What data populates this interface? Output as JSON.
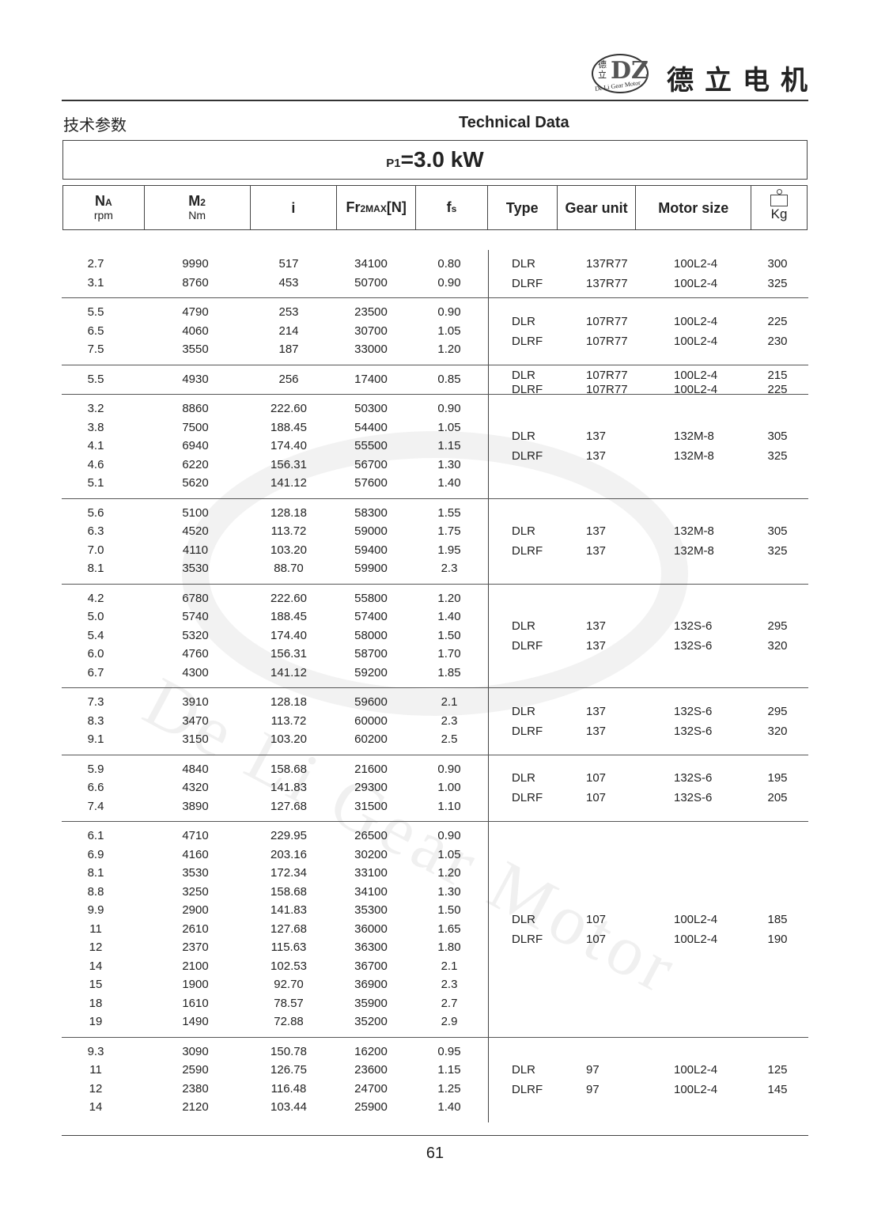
{
  "header": {
    "brand": "德立电机",
    "logo_text": "De Li Gear Motor",
    "logo_chars": "德立",
    "title_cn": "技术参数",
    "title_en": "Technical Data"
  },
  "power": {
    "label": "P",
    "sub": "1",
    "value": "=3.0 kW"
  },
  "columns": [
    {
      "main": "N",
      "sub": "A",
      "unit": "rpm"
    },
    {
      "main": "M",
      "sub": "2",
      "unit": "Nm"
    },
    {
      "main": "i"
    },
    {
      "main": "Fr",
      "sub": "2MAX",
      "tail": "[N]"
    },
    {
      "main": "f",
      "sub": "s"
    },
    {
      "main": "Type"
    },
    {
      "main": "Gear unit"
    },
    {
      "main": "Motor size"
    },
    {
      "main": "Kg",
      "icon": "weight-icon"
    }
  ],
  "groups": [
    {
      "rows": [
        [
          "2.7",
          "9990",
          "517",
          "34100",
          "0.80"
        ],
        [
          "3.1",
          "8760",
          "453",
          "50700",
          "0.90"
        ]
      ],
      "types": [
        [
          "DLR",
          "137R77",
          "100L2-4",
          "300"
        ],
        [
          "DLRF",
          "137R77",
          "100L2-4",
          "325"
        ]
      ]
    },
    {
      "rows": [
        [
          "5.5",
          "4790",
          "253",
          "23500",
          "0.90"
        ],
        [
          "6.5",
          "4060",
          "214",
          "30700",
          "1.05"
        ],
        [
          "7.5",
          "3550",
          "187",
          "33000",
          "1.20"
        ]
      ],
      "types": [
        [
          "DLR",
          "107R77",
          "100L2-4",
          "225"
        ],
        [
          "DLRF",
          "107R77",
          "100L2-4",
          "230"
        ]
      ]
    },
    {
      "rows": [
        [
          "5.5",
          "4930",
          "256",
          "17400",
          "0.85"
        ]
      ],
      "types": [
        [
          "DLR",
          "107R77",
          "100L2-4",
          "215"
        ],
        [
          "DLRF",
          "107R77",
          "100L2-4",
          "225"
        ]
      ]
    },
    {
      "rows": [
        [
          "3.2",
          "8860",
          "222.60",
          "50300",
          "0.90"
        ],
        [
          "3.8",
          "7500",
          "188.45",
          "54400",
          "1.05"
        ],
        [
          "4.1",
          "6940",
          "174.40",
          "55500",
          "1.15"
        ],
        [
          "4.6",
          "6220",
          "156.31",
          "56700",
          "1.30"
        ],
        [
          "5.1",
          "5620",
          "141.12",
          "57600",
          "1.40"
        ]
      ],
      "types": [
        [
          "DLR",
          "137",
          "132M-8",
          "305"
        ],
        [
          "DLRF",
          "137",
          "132M-8",
          "325"
        ]
      ]
    },
    {
      "rows": [
        [
          "5.6",
          "5100",
          "128.18",
          "58300",
          "1.55"
        ],
        [
          "6.3",
          "4520",
          "113.72",
          "59000",
          "1.75"
        ],
        [
          "7.0",
          "4110",
          "103.20",
          "59400",
          "1.95"
        ],
        [
          "8.1",
          "3530",
          "88.70",
          "59900",
          "2.3"
        ]
      ],
      "types": [
        [
          "DLR",
          "137",
          "132M-8",
          "305"
        ],
        [
          "DLRF",
          "137",
          "132M-8",
          "325"
        ]
      ]
    },
    {
      "rows": [
        [
          "4.2",
          "6780",
          "222.60",
          "55800",
          "1.20"
        ],
        [
          "5.0",
          "5740",
          "188.45",
          "57400",
          "1.40"
        ],
        [
          "5.4",
          "5320",
          "174.40",
          "58000",
          "1.50"
        ],
        [
          "6.0",
          "4760",
          "156.31",
          "58700",
          "1.70"
        ],
        [
          "6.7",
          "4300",
          "141.12",
          "59200",
          "1.85"
        ]
      ],
      "types": [
        [
          "DLR",
          "137",
          "132S-6",
          "295"
        ],
        [
          "DLRF",
          "137",
          "132S-6",
          "320"
        ]
      ]
    },
    {
      "rows": [
        [
          "7.3",
          "3910",
          "128.18",
          "59600",
          "2.1"
        ],
        [
          "8.3",
          "3470",
          "113.72",
          "60000",
          "2.3"
        ],
        [
          "9.1",
          "3150",
          "103.20",
          "60200",
          "2.5"
        ]
      ],
      "types": [
        [
          "DLR",
          "137",
          "132S-6",
          "295"
        ],
        [
          "DLRF",
          "137",
          "132S-6",
          "320"
        ]
      ]
    },
    {
      "rows": [
        [
          "5.9",
          "4840",
          "158.68",
          "21600",
          "0.90"
        ],
        [
          "6.6",
          "4320",
          "141.83",
          "29300",
          "1.00"
        ],
        [
          "7.4",
          "3890",
          "127.68",
          "31500",
          "1.10"
        ]
      ],
      "types": [
        [
          "DLR",
          "107",
          "132S-6",
          "195"
        ],
        [
          "DLRF",
          "107",
          "132S-6",
          "205"
        ]
      ]
    },
    {
      "rows": [
        [
          "6.1",
          "4710",
          "229.95",
          "26500",
          "0.90"
        ],
        [
          "6.9",
          "4160",
          "203.16",
          "30200",
          "1.05"
        ],
        [
          "8.1",
          "3530",
          "172.34",
          "33100",
          "1.20"
        ],
        [
          "8.8",
          "3250",
          "158.68",
          "34100",
          "1.30"
        ],
        [
          "9.9",
          "2900",
          "141.83",
          "35300",
          "1.50"
        ],
        [
          "11",
          "2610",
          "127.68",
          "36000",
          "1.65"
        ],
        [
          "12",
          "2370",
          "115.63",
          "36300",
          "1.80"
        ],
        [
          "14",
          "2100",
          "102.53",
          "36700",
          "2.1"
        ],
        [
          "15",
          "1900",
          "92.70",
          "36900",
          "2.3"
        ],
        [
          "18",
          "1610",
          "78.57",
          "35900",
          "2.7"
        ],
        [
          "19",
          "1490",
          "72.88",
          "35200",
          "2.9"
        ]
      ],
      "types": [
        [
          "DLR",
          "107",
          "100L2-4",
          "185"
        ],
        [
          "DLRF",
          "107",
          "100L2-4",
          "190"
        ]
      ]
    },
    {
      "rows": [
        [
          "9.3",
          "3090",
          "150.78",
          "16200",
          "0.95"
        ],
        [
          "11",
          "2590",
          "126.75",
          "23600",
          "1.15"
        ],
        [
          "12",
          "2380",
          "116.48",
          "24700",
          "1.25"
        ],
        [
          "14",
          "2120",
          "103.44",
          "25900",
          "1.40"
        ]
      ],
      "types": [
        [
          "DLR",
          "97",
          "100L2-4",
          "125"
        ],
        [
          "DLRF",
          "97",
          "100L2-4",
          "145"
        ]
      ]
    }
  ],
  "page_number": "61"
}
